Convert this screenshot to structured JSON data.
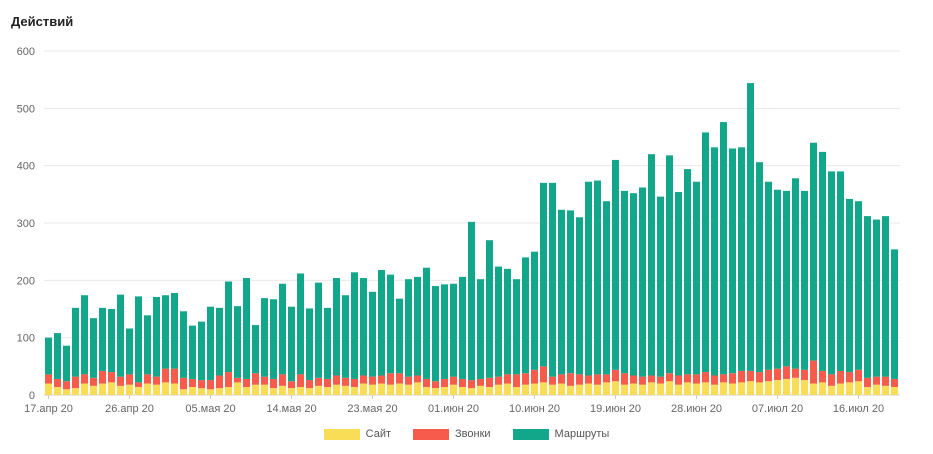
{
  "colors": {
    "site": "#f9dd56",
    "calls": "#f65b4c",
    "routes": "#12a68a",
    "grid": "#e8e8e8",
    "axis": "#cccccc"
  },
  "chart_data": {
    "type": "bar",
    "stacked": true,
    "title": "Действий",
    "ylim": [
      0,
      600
    ],
    "yticks": [
      "0",
      "100",
      "200",
      "300",
      "400",
      "500",
      "600"
    ],
    "xticks": [
      "17.апр 20",
      "26.апр 20",
      "05.мая 20",
      "14.мая 20",
      "23.мая 20",
      "01.июн 20",
      "10.июн 20",
      "19.июн 20",
      "28.июн 20",
      "07.июл 20",
      "16.июл 20"
    ],
    "grid": true,
    "legend_position": "bottom",
    "series": [
      {
        "name": "Сайт",
        "color": "#f9dd56",
        "values": [
          20,
          14,
          10,
          12,
          20,
          16,
          20,
          22,
          16,
          18,
          14,
          20,
          18,
          22,
          20,
          10,
          14,
          12,
          10,
          12,
          14,
          22,
          14,
          18,
          18,
          12,
          16,
          12,
          14,
          12,
          16,
          14,
          18,
          16,
          14,
          20,
          18,
          20,
          18,
          20,
          18,
          22,
          14,
          12,
          14,
          18,
          14,
          12,
          16,
          14,
          18,
          20,
          14,
          18,
          20,
          22,
          18,
          20,
          16,
          18,
          20,
          18,
          22,
          24,
          18,
          20,
          18,
          22,
          20,
          24,
          18,
          22,
          20,
          22,
          18,
          22,
          20,
          22,
          24,
          22,
          24,
          26,
          28,
          30,
          26,
          20,
          22,
          16,
          20,
          22,
          24,
          14,
          18,
          16,
          14
        ]
      },
      {
        "name": "Звонки",
        "color": "#f65b4c",
        "values": [
          16,
          14,
          14,
          20,
          16,
          14,
          22,
          18,
          16,
          18,
          8,
          16,
          14,
          24,
          26,
          20,
          14,
          14,
          16,
          22,
          26,
          8,
          14,
          20,
          14,
          16,
          20,
          12,
          22,
          14,
          14,
          14,
          16,
          14,
          14,
          14,
          14,
          14,
          20,
          18,
          14,
          12,
          14,
          12,
          14,
          14,
          14,
          14,
          12,
          16,
          14,
          16,
          22,
          20,
          24,
          28,
          14,
          16,
          22,
          18,
          14,
          18,
          14,
          20,
          20,
          14,
          14,
          12,
          12,
          14,
          16,
          14,
          16,
          18,
          16,
          14,
          18,
          20,
          18,
          18,
          20,
          20,
          22,
          16,
          18,
          40,
          20,
          20,
          22,
          18,
          20,
          16,
          14,
          16,
          14
        ]
      },
      {
        "name": "Маршруты",
        "color": "#12a68a",
        "values": [
          64,
          80,
          62,
          120,
          138,
          104,
          110,
          110,
          143,
          80,
          150,
          103,
          139,
          128,
          132,
          116,
          93,
          102,
          128,
          118,
          158,
          125,
          176,
          84,
          137,
          139,
          158,
          130,
          176,
          125,
          166,
          124,
          170,
          144,
          186,
          170,
          148,
          184,
          172,
          130,
          170,
          172,
          194,
          166,
          165,
          162,
          178,
          276,
          174,
          240,
          192,
          184,
          166,
          202,
          206,
          320,
          338,
          287,
          284,
          274,
          338,
          338,
          302,
          366,
          318,
          318,
          330,
          386,
          314,
          380,
          320,
          358,
          336,
          418,
          398,
          440,
          392,
          390,
          502,
          366,
          328,
          312,
          306,
          332,
          312,
          380,
          382,
          354,
          348,
          302,
          294,
          282,
          274,
          280,
          226
        ]
      }
    ]
  },
  "legend": [
    {
      "label": "Сайт",
      "color": "#f9dd56"
    },
    {
      "label": "Звонки",
      "color": "#f65b4c"
    },
    {
      "label": "Маршруты",
      "color": "#12a68a"
    }
  ]
}
